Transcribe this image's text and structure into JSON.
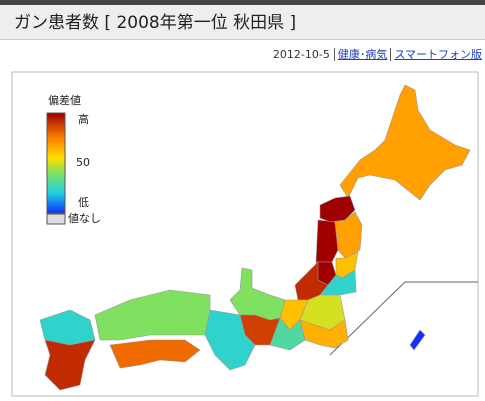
{
  "header": {
    "title": "ガン患者数 [ 2008年第一位 秋田県 ]"
  },
  "meta": {
    "date": "2012-10-5",
    "links": [
      "健康･病気",
      "スマートフォン版"
    ]
  },
  "map": {
    "legend": {
      "title": "偏差値",
      "high": "高",
      "mid": 50,
      "low": "低",
      "none": "値なし"
    },
    "regions": [
      57,
      70,
      75,
      57,
      65,
      55,
      63,
      45,
      55,
      52,
      56,
      47,
      50,
      62,
      45,
      50,
      60,
      45,
      63,
      35
    ]
  }
}
